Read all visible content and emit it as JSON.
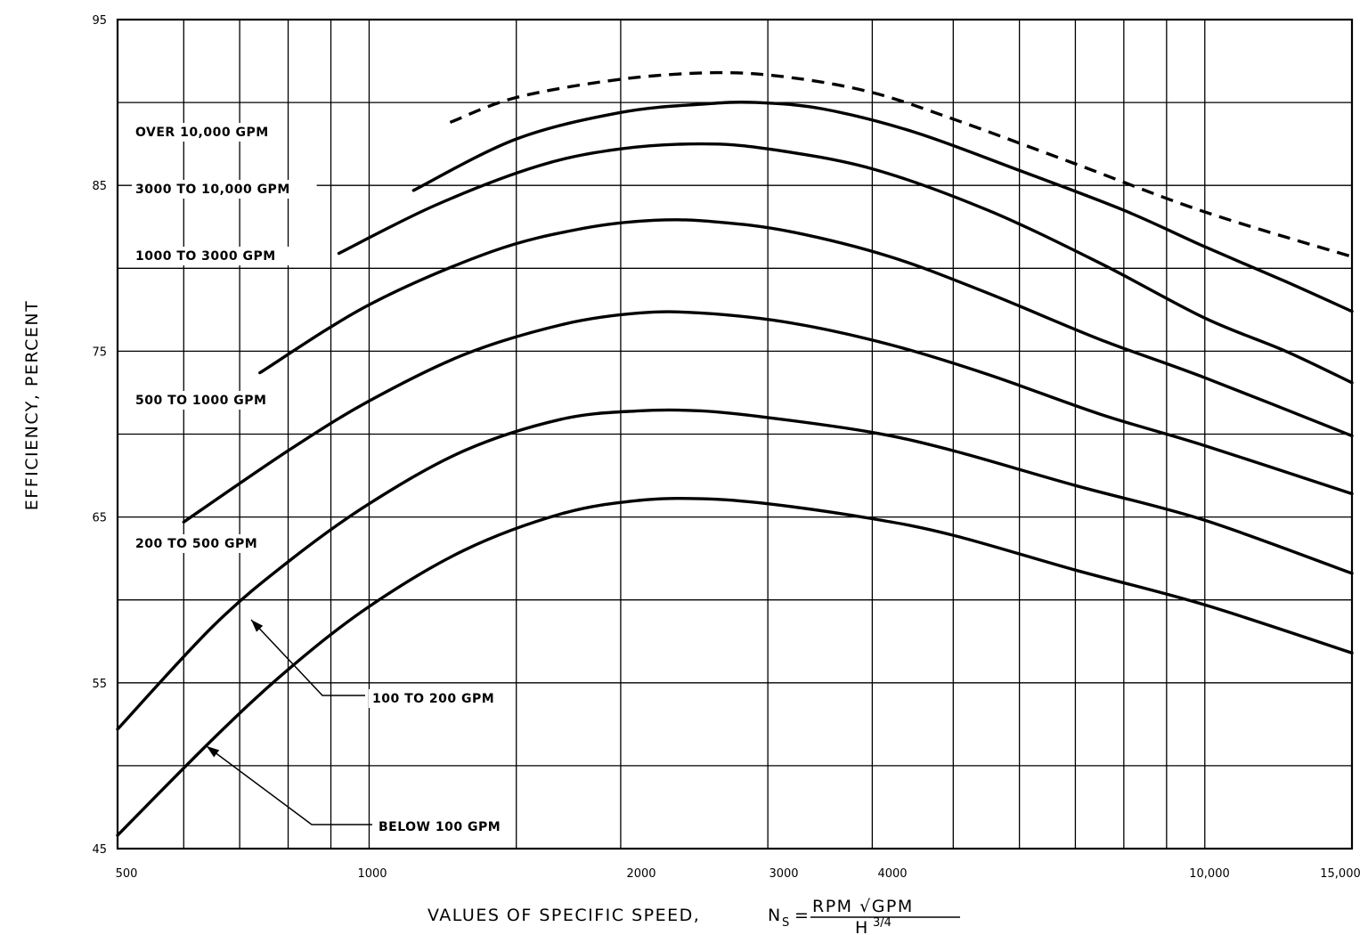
{
  "chart_data": {
    "type": "line",
    "title": "",
    "xlabel": "VALUES OF SPECIFIC SPEED,",
    "xlabel_formula": {
      "lhs": "N",
      "lhs_sub": "S",
      "eq": "=",
      "numerator": "RPM √GPM",
      "denominator": "H",
      "denominator_exp": "3/4"
    },
    "ylabel": "EFFICIENCY, PERCENT",
    "x_scale": "log",
    "xlim": [
      500,
      15000
    ],
    "ylim": [
      45,
      95
    ],
    "x_ticks": [
      {
        "value": 500,
        "label": "500"
      },
      {
        "value": 1000,
        "label": "1000"
      },
      {
        "value": 2000,
        "label": "2000"
      },
      {
        "value": 3000,
        "label": "3000"
      },
      {
        "value": 4000,
        "label": "4000"
      },
      {
        "value": 10000,
        "label": "10,000"
      },
      {
        "value": 15000,
        "label": "15,000"
      }
    ],
    "y_ticks": [
      {
        "value": 95,
        "label": "95"
      },
      {
        "value": 85,
        "label": "85"
      },
      {
        "value": 75,
        "label": "75"
      },
      {
        "value": 65,
        "label": "65"
      },
      {
        "value": 55,
        "label": "55"
      },
      {
        "value": 45,
        "label": "45"
      }
    ],
    "grid": true,
    "series": [
      {
        "name": "",
        "style": "dashed",
        "x": [
          1250,
          1500,
          2000,
          2600,
          3200,
          4000,
          5000,
          7000,
          10000,
          15000
        ],
        "y": [
          88.8,
          90.3,
          91.4,
          91.8,
          91.5,
          90.6,
          89.0,
          86.3,
          83.4,
          80.7
        ]
      },
      {
        "name": "OVER 10,000 GPM",
        "style": "solid",
        "x": [
          1130,
          1500,
          2000,
          2500,
          2900,
          3500,
          4500,
          6000,
          8000,
          10000,
          12500,
          15000
        ],
        "y": [
          84.7,
          87.8,
          89.4,
          89.9,
          90.0,
          89.6,
          88.2,
          85.9,
          83.5,
          81.3,
          79.2,
          77.4
        ]
      },
      {
        "name": "3000 TO 10,000 GPM",
        "style": "solid",
        "x": [
          920,
          1200,
          1600,
          2000,
          2500,
          3000,
          4000,
          5500,
          7500,
          10000,
          12500,
          15000
        ],
        "y": [
          80.9,
          83.8,
          86.2,
          87.2,
          87.5,
          87.2,
          86.0,
          83.5,
          80.3,
          77.0,
          75.0,
          73.1
        ]
      },
      {
        "name": "1000 TO 3000 GPM",
        "style": "solid",
        "x": [
          740,
          1000,
          1400,
          1800,
          2200,
          2600,
          3200,
          4200,
          5500,
          7500,
          10000,
          15000
        ],
        "y": [
          73.7,
          77.8,
          81.0,
          82.4,
          82.9,
          82.8,
          82.2,
          80.7,
          78.5,
          75.7,
          73.4,
          69.9
        ]
      },
      {
        "name": "500 TO 1000 GPM",
        "style": "solid",
        "x": [
          600,
          800,
          1000,
          1300,
          1700,
          2100,
          2500,
          3200,
          4200,
          5500,
          7500,
          10000,
          15000
        ],
        "y": [
          64.7,
          69.0,
          72.0,
          74.8,
          76.6,
          77.3,
          77.3,
          76.7,
          75.4,
          73.6,
          71.2,
          69.3,
          66.4
        ]
      },
      {
        "name": "100 TO 200 GPM",
        "style": "solid",
        "x": [
          500,
          650,
          800,
          1000,
          1300,
          1700,
          2100,
          2500,
          3000,
          4000,
          5000,
          7000,
          10000,
          15000
        ],
        "y": [
          52.2,
          58.4,
          62.3,
          65.8,
          69.0,
          70.9,
          71.4,
          71.4,
          71.0,
          70.1,
          69.0,
          66.9,
          64.8,
          61.6
        ]
      },
      {
        "name": "BELOW 100 GPM",
        "style": "solid",
        "x": [
          500,
          650,
          800,
          1000,
          1300,
          1700,
          2100,
          2500,
          3000,
          4000,
          5000,
          7000,
          10000,
          15000
        ],
        "y": [
          45.8,
          51.6,
          55.8,
          59.6,
          63.0,
          65.2,
          66.0,
          66.1,
          65.8,
          64.9,
          63.9,
          61.8,
          59.7,
          56.8
        ]
      }
    ],
    "annotations": [
      {
        "text": "OVER 10,000 GPM"
      },
      {
        "text": "3000 TO 10,000 GPM"
      },
      {
        "text": "1000 TO 3000 GPM"
      },
      {
        "text": "500 TO 1000 GPM"
      },
      {
        "text": "200 TO 500 GPM"
      },
      {
        "text": "100 TO 200 GPM"
      },
      {
        "text": "BELOW 100 GPM"
      }
    ]
  }
}
